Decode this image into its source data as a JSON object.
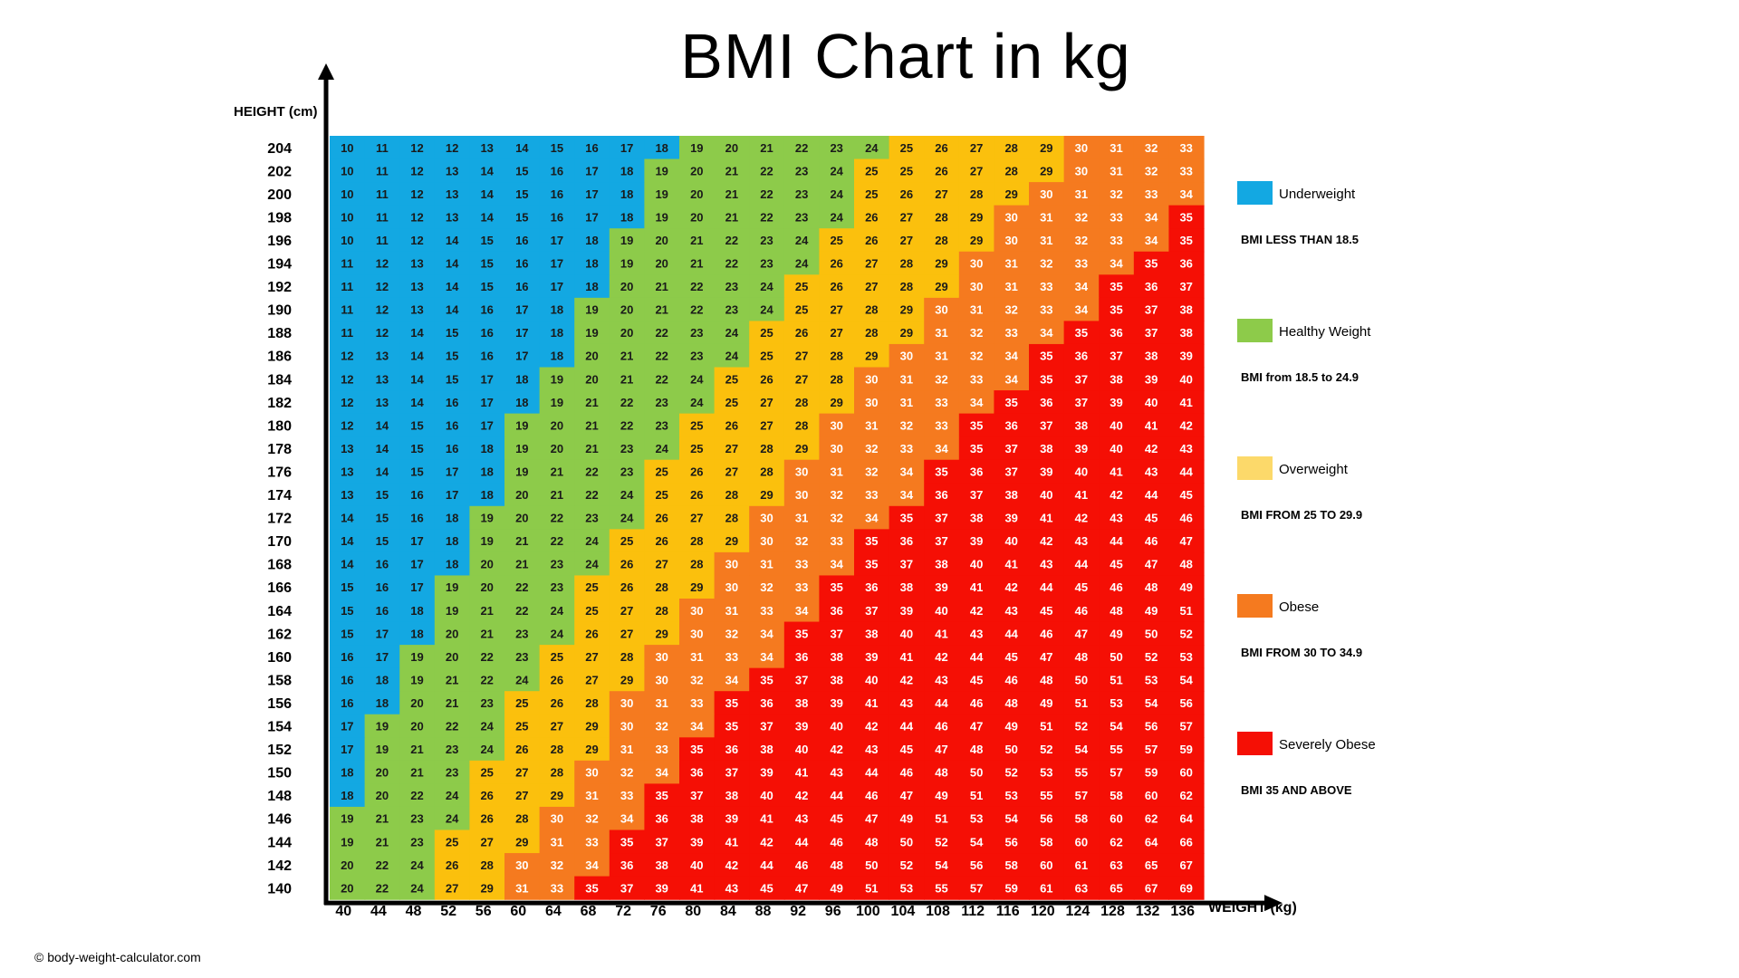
{
  "title": "BMI Chart in kg",
  "copyright": "© body-weight-calculator.com",
  "colors": {
    "underweight": "#13A8E2",
    "healthy": "#8DCB4A",
    "overweight": "#FBC00D",
    "obese": "#F57A1F",
    "severe": "#F50F05"
  },
  "legend": [
    {
      "label": "Underweight",
      "range": "BMI LESS THAN 18.5",
      "color": "#13A8E2"
    },
    {
      "label": "Healthy Weight",
      "range": "BMI from 18.5 to 24.9",
      "color": "#8DCB4A"
    },
    {
      "label": "Overweight",
      "range": "BMI FROM 25 TO 29.9",
      "color": "#FCD96A"
    },
    {
      "label": "Obese",
      "range": "BMI FROM 30 TO 34.9",
      "color": "#F57A1F"
    },
    {
      "label": "Severely Obese",
      "range": "BMI 35 AND ABOVE",
      "color": "#F50F05"
    }
  ],
  "chart_data": {
    "type": "heatmap",
    "title": "BMI Chart in kg",
    "xlabel": "WEIGHT (kg)",
    "ylabel": "HEIGHT (cm)",
    "x": [
      40,
      44,
      48,
      52,
      56,
      60,
      64,
      68,
      72,
      76,
      80,
      84,
      88,
      92,
      96,
      100,
      104,
      108,
      112,
      116,
      120,
      124,
      128,
      132,
      136
    ],
    "y": [
      204,
      202,
      200,
      198,
      196,
      194,
      192,
      190,
      188,
      186,
      184,
      182,
      180,
      178,
      176,
      174,
      172,
      170,
      168,
      166,
      164,
      162,
      160,
      158,
      156,
      154,
      152,
      150,
      148,
      146,
      144,
      142,
      140
    ],
    "values": [
      [
        10,
        11,
        12,
        12,
        13,
        14,
        15,
        16,
        17,
        18,
        19,
        20,
        21,
        22,
        23,
        24,
        25,
        26,
        27,
        28,
        29,
        30,
        31,
        32,
        33
      ],
      [
        10,
        11,
        12,
        13,
        14,
        15,
        16,
        17,
        18,
        19,
        20,
        21,
        22,
        23,
        24,
        25,
        25,
        26,
        27,
        28,
        29,
        30,
        31,
        32,
        33
      ],
      [
        10,
        11,
        12,
        13,
        14,
        15,
        16,
        17,
        18,
        19,
        20,
        21,
        22,
        23,
        24,
        25,
        26,
        27,
        28,
        29,
        30,
        31,
        32,
        33,
        34
      ],
      [
        10,
        11,
        12,
        13,
        14,
        15,
        16,
        17,
        18,
        19,
        20,
        21,
        22,
        23,
        24,
        26,
        27,
        28,
        29,
        30,
        31,
        32,
        33,
        34,
        35
      ],
      [
        10,
        11,
        12,
        14,
        15,
        16,
        17,
        18,
        19,
        20,
        21,
        22,
        23,
        24,
        25,
        26,
        27,
        28,
        29,
        30,
        31,
        32,
        33,
        34,
        35
      ],
      [
        11,
        12,
        13,
        14,
        15,
        16,
        17,
        18,
        19,
        20,
        21,
        22,
        23,
        24,
        26,
        27,
        28,
        29,
        30,
        31,
        32,
        33,
        34,
        35,
        36
      ],
      [
        11,
        12,
        13,
        14,
        15,
        16,
        17,
        18,
        20,
        21,
        22,
        23,
        24,
        25,
        26,
        27,
        28,
        29,
        30,
        31,
        33,
        34,
        35,
        36,
        37
      ],
      [
        11,
        12,
        13,
        14,
        16,
        17,
        18,
        19,
        20,
        21,
        22,
        23,
        24,
        25,
        27,
        28,
        29,
        30,
        31,
        32,
        33,
        34,
        35,
        37,
        38
      ],
      [
        11,
        12,
        14,
        15,
        16,
        17,
        18,
        19,
        20,
        22,
        23,
        24,
        25,
        26,
        27,
        28,
        29,
        31,
        32,
        33,
        34,
        35,
        36,
        37,
        38
      ],
      [
        12,
        13,
        14,
        15,
        16,
        17,
        18,
        20,
        21,
        22,
        23,
        24,
        25,
        27,
        28,
        29,
        30,
        31,
        32,
        34,
        35,
        36,
        37,
        38,
        39
      ],
      [
        12,
        13,
        14,
        15,
        17,
        18,
        19,
        20,
        21,
        22,
        24,
        25,
        26,
        27,
        28,
        30,
        31,
        32,
        33,
        34,
        35,
        37,
        38,
        39,
        40
      ],
      [
        12,
        13,
        14,
        16,
        17,
        18,
        19,
        21,
        22,
        23,
        24,
        25,
        27,
        28,
        29,
        30,
        31,
        33,
        34,
        35,
        36,
        37,
        39,
        40,
        41
      ],
      [
        12,
        14,
        15,
        16,
        17,
        19,
        20,
        21,
        22,
        23,
        25,
        26,
        27,
        28,
        30,
        31,
        32,
        33,
        35,
        36,
        37,
        38,
        40,
        41,
        42
      ],
      [
        13,
        14,
        15,
        16,
        18,
        19,
        20,
        21,
        23,
        24,
        25,
        27,
        28,
        29,
        30,
        32,
        33,
        34,
        35,
        37,
        38,
        39,
        40,
        42,
        43
      ],
      [
        13,
        14,
        15,
        17,
        18,
        19,
        21,
        22,
        23,
        25,
        26,
        27,
        28,
        30,
        31,
        32,
        34,
        35,
        36,
        37,
        39,
        40,
        41,
        43,
        44
      ],
      [
        13,
        15,
        16,
        17,
        18,
        20,
        21,
        22,
        24,
        25,
        26,
        28,
        29,
        30,
        32,
        33,
        34,
        36,
        37,
        38,
        40,
        41,
        42,
        44,
        45
      ],
      [
        14,
        15,
        16,
        18,
        19,
        20,
        22,
        23,
        24,
        26,
        27,
        28,
        30,
        31,
        32,
        34,
        35,
        37,
        38,
        39,
        41,
        42,
        43,
        45,
        46
      ],
      [
        14,
        15,
        17,
        18,
        19,
        21,
        22,
        24,
        25,
        26,
        28,
        29,
        30,
        32,
        33,
        35,
        36,
        37,
        39,
        40,
        42,
        43,
        44,
        46,
        47
      ],
      [
        14,
        16,
        17,
        18,
        20,
        21,
        23,
        24,
        26,
        27,
        28,
        30,
        31,
        33,
        34,
        35,
        37,
        38,
        40,
        41,
        43,
        44,
        45,
        47,
        48
      ],
      [
        15,
        16,
        17,
        19,
        20,
        22,
        23,
        25,
        26,
        28,
        29,
        30,
        32,
        33,
        35,
        36,
        38,
        39,
        41,
        42,
        44,
        45,
        46,
        48,
        49
      ],
      [
        15,
        16,
        18,
        19,
        21,
        22,
        24,
        25,
        27,
        28,
        30,
        31,
        33,
        34,
        36,
        37,
        39,
        40,
        42,
        43,
        45,
        46,
        48,
        49,
        51
      ],
      [
        15,
        17,
        18,
        20,
        21,
        23,
        24,
        26,
        27,
        29,
        30,
        32,
        34,
        35,
        37,
        38,
        40,
        41,
        43,
        44,
        46,
        47,
        49,
        50,
        52
      ],
      [
        16,
        17,
        19,
        20,
        22,
        23,
        25,
        27,
        28,
        30,
        31,
        33,
        34,
        36,
        38,
        39,
        41,
        42,
        44,
        45,
        47,
        48,
        50,
        52,
        53
      ],
      [
        16,
        18,
        19,
        21,
        22,
        24,
        26,
        27,
        29,
        30,
        32,
        34,
        35,
        37,
        38,
        40,
        42,
        43,
        45,
        46,
        48,
        50,
        51,
        53,
        54
      ],
      [
        16,
        18,
        20,
        21,
        23,
        25,
        26,
        28,
        30,
        31,
        33,
        35,
        36,
        38,
        39,
        41,
        43,
        44,
        46,
        48,
        49,
        51,
        53,
        54,
        56
      ],
      [
        17,
        19,
        20,
        22,
        24,
        25,
        27,
        29,
        30,
        32,
        34,
        35,
        37,
        39,
        40,
        42,
        44,
        46,
        47,
        49,
        51,
        52,
        54,
        56,
        57
      ],
      [
        17,
        19,
        21,
        23,
        24,
        26,
        28,
        29,
        31,
        33,
        35,
        36,
        38,
        40,
        42,
        43,
        45,
        47,
        48,
        50,
        52,
        54,
        55,
        57,
        59
      ],
      [
        18,
        20,
        21,
        23,
        25,
        27,
        28,
        30,
        32,
        34,
        36,
        37,
        39,
        41,
        43,
        44,
        46,
        48,
        50,
        52,
        53,
        55,
        57,
        59,
        60
      ],
      [
        18,
        20,
        22,
        24,
        26,
        27,
        29,
        31,
        33,
        35,
        37,
        38,
        40,
        42,
        44,
        46,
        47,
        49,
        51,
        53,
        55,
        57,
        58,
        60,
        62
      ],
      [
        19,
        21,
        23,
        24,
        26,
        28,
        30,
        32,
        34,
        36,
        38,
        39,
        41,
        43,
        45,
        47,
        49,
        51,
        53,
        54,
        56,
        58,
        60,
        62,
        64
      ],
      [
        19,
        21,
        23,
        25,
        27,
        29,
        31,
        33,
        35,
        37,
        39,
        41,
        42,
        44,
        46,
        48,
        50,
        52,
        54,
        56,
        58,
        60,
        62,
        64,
        66
      ],
      [
        20,
        22,
        24,
        26,
        28,
        30,
        32,
        34,
        36,
        38,
        40,
        42,
        44,
        46,
        48,
        50,
        52,
        54,
        56,
        58,
        60,
        61,
        63,
        65,
        67
      ],
      [
        20,
        22,
        24,
        27,
        29,
        31,
        33,
        35,
        37,
        39,
        41,
        43,
        45,
        47,
        49,
        51,
        53,
        55,
        57,
        59,
        61,
        63,
        65,
        67,
        69
      ]
    ]
  }
}
